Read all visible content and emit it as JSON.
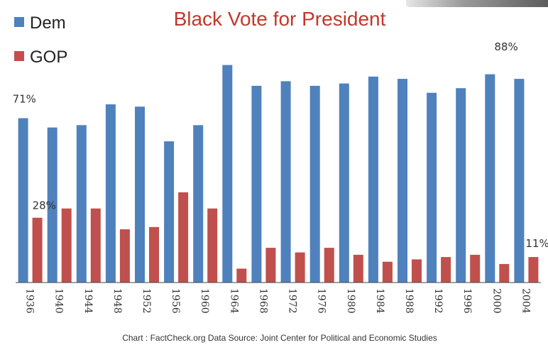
{
  "chart_data": {
    "type": "bar",
    "title": "Black Vote for President",
    "title_color": "#c0392b",
    "categories": [
      "1936",
      "1940",
      "1944",
      "1948",
      "1952",
      "1956",
      "1960",
      "1964",
      "1968",
      "1972",
      "1976",
      "1980",
      "1984",
      "1988",
      "1992",
      "1996",
      "2000",
      "2004"
    ],
    "series": [
      {
        "name": "Dem",
        "color": "#4f81bd",
        "values": [
          71,
          67,
          68,
          77,
          76,
          61,
          68,
          94,
          85,
          87,
          85,
          86,
          89,
          88,
          82,
          84,
          90,
          88
        ]
      },
      {
        "name": "GOP",
        "color": "#c0504d",
        "values": [
          28,
          32,
          32,
          23,
          24,
          39,
          32,
          6,
          15,
          13,
          15,
          12,
          9,
          10,
          11,
          12,
          8,
          11
        ]
      }
    ],
    "ylim": [
      0,
      100
    ],
    "grid": false,
    "legend": "top-left",
    "annotations": [
      {
        "text": "71%",
        "category": "1936",
        "series": "Dem"
      },
      {
        "text": "28%",
        "category": "1936",
        "series": "GOP"
      },
      {
        "text": "88%",
        "category": "2004",
        "series": "Dem"
      },
      {
        "text": "11%",
        "category": "2004",
        "series": "GOP"
      }
    ],
    "source": "Chart : FactCheck.org      Data Source:  Joint Center for Political and Economic Studies"
  }
}
